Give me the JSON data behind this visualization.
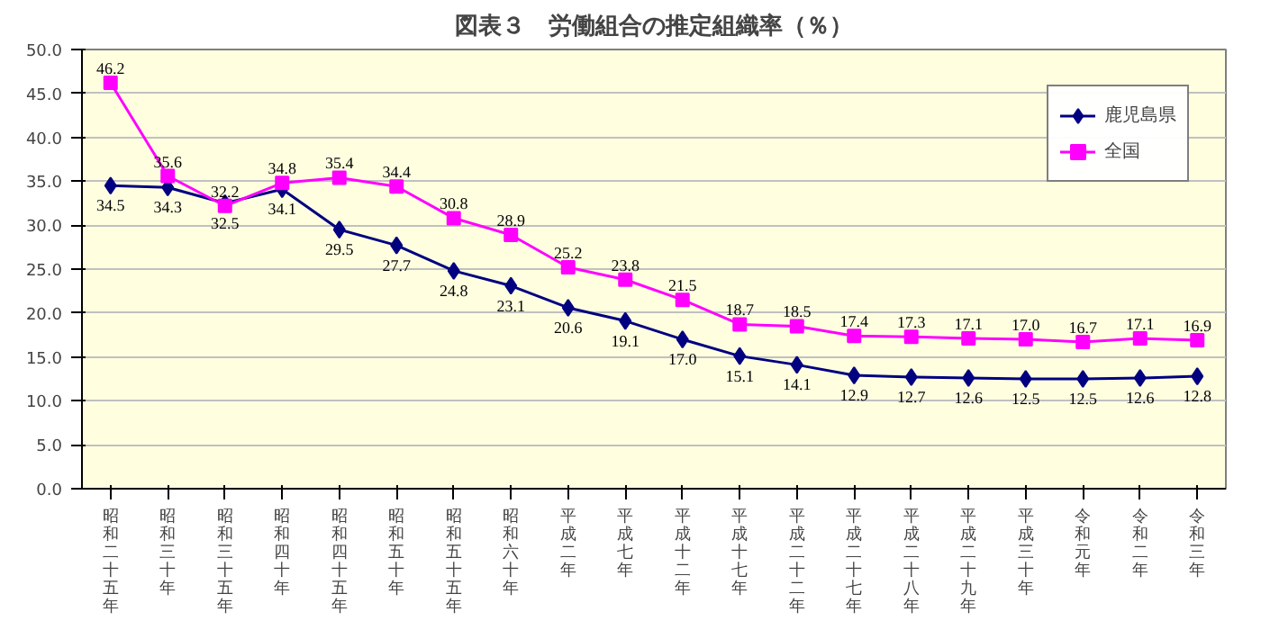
{
  "chart_data": {
    "type": "line",
    "title": "図表３　労働組合の推定組織率（％）",
    "categories": [
      "昭和二十五年",
      "昭和三十年",
      "昭和三十五年",
      "昭和四十年",
      "昭和四十五年",
      "昭和五十年",
      "昭和五十五年",
      "昭和六十年",
      "平成二年",
      "平成七年",
      "平成十二年",
      "平成十七年",
      "平成二十二年",
      "平成二十七年",
      "平成二十八年",
      "平成二十九年",
      "平成三十年",
      "令和元年",
      "令和二年",
      "令和三年"
    ],
    "series": [
      {
        "name": "鹿児島県",
        "color": "#000080",
        "marker": "diamond",
        "values": [
          34.5,
          34.3,
          32.5,
          34.1,
          29.5,
          27.7,
          24.8,
          23.1,
          20.6,
          19.1,
          17.0,
          15.1,
          14.1,
          12.9,
          12.7,
          12.6,
          12.5,
          12.5,
          12.6,
          12.8
        ],
        "value_labels": [
          "34.5",
          "34.3",
          "32.5",
          "34.1",
          "29.5",
          "27.7",
          "24.8",
          "23.1",
          "20.6",
          "19.1",
          "17.0",
          "15.1",
          "14.1",
          "12.9",
          "12.7",
          "12.6",
          "12.5",
          "12.5",
          "12.6",
          "12.8"
        ]
      },
      {
        "name": "全国",
        "color": "#ff00ff",
        "marker": "square",
        "values": [
          46.2,
          35.6,
          32.2,
          34.8,
          35.4,
          34.4,
          30.8,
          28.9,
          25.2,
          23.8,
          21.5,
          18.7,
          18.5,
          17.4,
          17.3,
          17.1,
          17.0,
          16.7,
          17.1,
          16.9
        ],
        "value_labels": [
          "46.2",
          "35.6",
          "32.2",
          "34.8",
          "35.4",
          "34.4",
          "30.8",
          "28.9",
          "25.2",
          "23.8",
          "21.5",
          "18.7",
          "18.5",
          "17.4",
          "17.3",
          "17.1",
          "17.0",
          "16.7",
          "17.1",
          "16.9"
        ]
      }
    ],
    "ylim": [
      0,
      50
    ],
    "yticks": [
      {
        "value": 0,
        "label": "0.0"
      },
      {
        "value": 5,
        "label": "5.0"
      },
      {
        "value": 10,
        "label": "10.0"
      },
      {
        "value": 15,
        "label": "15.0"
      },
      {
        "value": 20,
        "label": "20.0"
      },
      {
        "value": 25,
        "label": "25.0"
      },
      {
        "value": 30,
        "label": "30.0"
      },
      {
        "value": 35,
        "label": "35.0"
      },
      {
        "value": 40,
        "label": "40.0"
      },
      {
        "value": 45,
        "label": "45.0"
      },
      {
        "value": 50,
        "label": "50.0"
      }
    ],
    "grid": "y",
    "legend": "top right"
  }
}
